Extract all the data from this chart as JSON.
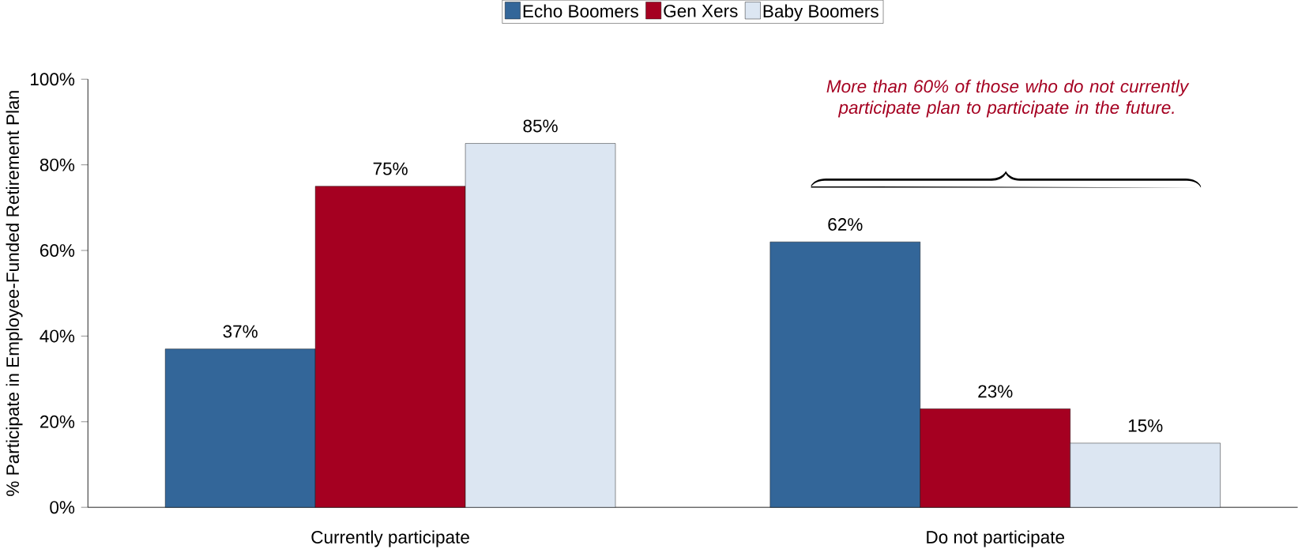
{
  "chart_data": {
    "type": "bar",
    "ylabel": "% Participate in Employee-Funded Retirement Plan",
    "categories": [
      "Currently participate",
      "Do not participate"
    ],
    "series": [
      {
        "name": "Echo Boomers",
        "color": "#336699",
        "values": [
          37,
          62
        ],
        "value_labels": [
          "37%",
          "62%"
        ]
      },
      {
        "name": "Gen Xers",
        "color": "#a50021",
        "values": [
          75,
          23
        ],
        "value_labels": [
          "75%",
          "23%"
        ]
      },
      {
        "name": "Baby Boomers",
        "color": "#dce6f2",
        "values": [
          85,
          15
        ],
        "value_labels": [
          "85%",
          "15%"
        ]
      }
    ],
    "ylim": [
      0,
      100
    ],
    "yticks": [
      {
        "value": 0,
        "label": "0%"
      },
      {
        "value": 20,
        "label": "20%"
      },
      {
        "value": 40,
        "label": "40%"
      },
      {
        "value": 60,
        "label": "60%"
      },
      {
        "value": 80,
        "label": "80%"
      },
      {
        "value": 100,
        "label": "100%"
      }
    ],
    "legend": "top",
    "grid": false,
    "annotations": [
      "More than 60% of those who do not currently participate plan to participate in the future."
    ]
  }
}
